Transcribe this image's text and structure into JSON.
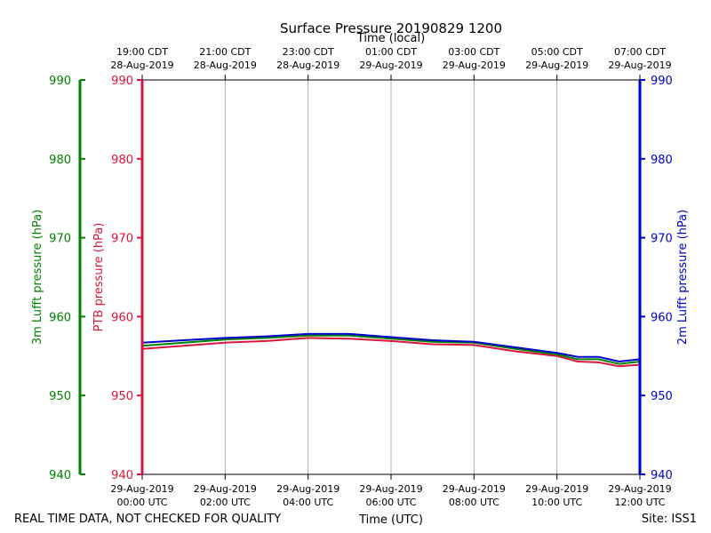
{
  "chart_data": {
    "type": "line",
    "title": "Surface Pressure 20190829 1200",
    "top_axis_label": "Time (local)",
    "xlabel": "Time (UTC)",
    "ylabel_left_outer": "3m Lufft pressure (hPa)",
    "ylabel_left_inner": "PTB pressure (hPa)",
    "ylabel_right": "2m Lufft pressure (hPa)",
    "ylim": [
      940,
      990
    ],
    "yticks": [
      940,
      950,
      960,
      970,
      980,
      990
    ],
    "x_range_hours": [
      0,
      12
    ],
    "grid": "vertical",
    "bottom_ticks": [
      {
        "hour": 0,
        "line1": "29-Aug-2019",
        "line2": "00:00 UTC"
      },
      {
        "hour": 2,
        "line1": "29-Aug-2019",
        "line2": "02:00 UTC"
      },
      {
        "hour": 4,
        "line1": "29-Aug-2019",
        "line2": "04:00 UTC"
      },
      {
        "hour": 6,
        "line1": "29-Aug-2019",
        "line2": "06:00 UTC"
      },
      {
        "hour": 8,
        "line1": "29-Aug-2019",
        "line2": "08:00 UTC"
      },
      {
        "hour": 10,
        "line1": "29-Aug-2019",
        "line2": "10:00 UTC"
      },
      {
        "hour": 12,
        "line1": "29-Aug-2019",
        "line2": "12:00 UTC"
      }
    ],
    "top_ticks": [
      {
        "hour": 0,
        "line1": "19:00 CDT",
        "line2": "28-Aug-2019"
      },
      {
        "hour": 2,
        "line1": "21:00 CDT",
        "line2": "28-Aug-2019"
      },
      {
        "hour": 4,
        "line1": "23:00 CDT",
        "line2": "28-Aug-2019"
      },
      {
        "hour": 6,
        "line1": "01:00 CDT",
        "line2": "29-Aug-2019"
      },
      {
        "hour": 8,
        "line1": "03:00 CDT",
        "line2": "29-Aug-2019"
      },
      {
        "hour": 10,
        "line1": "05:00 CDT",
        "line2": "29-Aug-2019"
      },
      {
        "hour": 12,
        "line1": "07:00 CDT",
        "line2": "29-Aug-2019"
      }
    ],
    "x": [
      0,
      1,
      2,
      3,
      4,
      5,
      6,
      7,
      8,
      9,
      10,
      10.5,
      11,
      11.5,
      12
    ],
    "series": [
      {
        "name": "PTB pressure",
        "color": "#dc143c",
        "values": [
          955.9,
          956.3,
          956.7,
          956.9,
          957.3,
          957.2,
          956.9,
          956.5,
          956.4,
          955.6,
          955.0,
          954.3,
          954.2,
          953.7,
          953.9
        ]
      },
      {
        "name": "3m Lufft pressure",
        "color": "#008000",
        "values": [
          956.3,
          956.7,
          957.1,
          957.3,
          957.6,
          957.6,
          957.2,
          956.8,
          956.7,
          955.9,
          955.2,
          954.6,
          954.6,
          954.0,
          954.3
        ]
      },
      {
        "name": "2m Lufft pressure",
        "color": "#0000cd",
        "values": [
          956.7,
          957.0,
          957.3,
          957.5,
          957.8,
          957.8,
          957.4,
          957.0,
          956.8,
          956.1,
          955.4,
          954.9,
          954.9,
          954.3,
          954.6
        ]
      }
    ],
    "axis_colors": {
      "left_outer": "#008000",
      "left_inner": "#dc143c",
      "right": "#0000cd"
    }
  },
  "footer": {
    "left_note": "REAL TIME DATA, NOT CHECKED FOR QUALITY",
    "site": "Site: ISS1"
  }
}
